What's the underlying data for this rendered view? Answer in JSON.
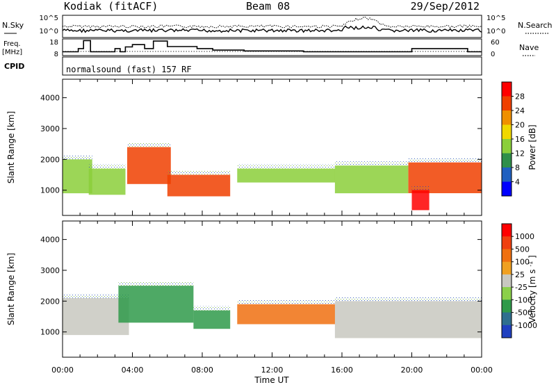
{
  "header": {
    "station": "Kodiak (fitACF)",
    "beam": "Beam 08",
    "date": "29/Sep/2012"
  },
  "mode_text": "normalsound (fast) 157 RF",
  "chart_data": [
    {
      "type": "line",
      "left_label": "N.Sky",
      "right_label": "N.Search",
      "left_ticks": [
        "10^5",
        "10^0"
      ],
      "right_ticks": [
        "10^5",
        "10^0"
      ],
      "x_range_hours": [
        0,
        24
      ]
    },
    {
      "type": "line",
      "left_label": "Freq.",
      "left_unit": "[MHz]",
      "right_label": "Nave",
      "left_ticks": [
        "18",
        "8"
      ],
      "right_ticks": [
        "60",
        "0"
      ],
      "freq_steps": [
        {
          "t": 0.0,
          "f": 10.3
        },
        {
          "t": 0.7,
          "f": 10.3
        },
        {
          "t": 0.9,
          "f": 12.2
        },
        {
          "t": 1.2,
          "f": 17.0
        },
        {
          "t": 1.6,
          "f": 10.3
        },
        {
          "t": 3.0,
          "f": 12.2
        },
        {
          "t": 3.3,
          "f": 10.3
        },
        {
          "t": 3.6,
          "f": 13.2
        },
        {
          "t": 4.0,
          "f": 14.6
        },
        {
          "t": 4.7,
          "f": 12.2
        },
        {
          "t": 5.2,
          "f": 16.7
        },
        {
          "t": 6.0,
          "f": 13.4
        },
        {
          "t": 7.7,
          "f": 12.2
        },
        {
          "t": 8.1,
          "f": 12.2
        },
        {
          "t": 8.6,
          "f": 11.3
        },
        {
          "t": 10.4,
          "f": 10.8
        },
        {
          "t": 13.8,
          "f": 10.3
        },
        {
          "t": 19.7,
          "f": 10.3
        },
        {
          "t": 20.0,
          "f": 12.2
        },
        {
          "t": 23.2,
          "f": 10.3
        },
        {
          "t": 24.0,
          "f": 10.3
        }
      ]
    },
    {
      "type": "line",
      "left_label": "CPID"
    },
    {
      "type": "heatmap",
      "quantity": "Power",
      "ylabel": "Slant Range [km]",
      "y_ticks": [
        1000,
        2000,
        3000,
        4000
      ],
      "ylim": [
        180,
        4600
      ],
      "x_ticks": [
        "00:00",
        "04:00",
        "08:00",
        "12:00",
        "16:00",
        "20:00",
        "00:00"
      ],
      "colorbar_label": "Power",
      "colorbar_unit": "[dB]",
      "colorbar_ticks": [
        "4",
        "8",
        "12",
        "16",
        "20",
        "24",
        "28"
      ],
      "colorbar_colors": [
        "#0000ff",
        "#2060c0",
        "#2f8f4a",
        "#8bcf3a",
        "#f0d800",
        "#f09000",
        "#f04000",
        "#ff0000"
      ],
      "regions": [
        {
          "t0": 0.0,
          "t1": 1.7,
          "r0": 900,
          "r1": 2000
        },
        {
          "t0": 1.5,
          "t1": 3.6,
          "r0": 850,
          "r1": 1700
        },
        {
          "t0": 3.7,
          "t1": 6.2,
          "r0": 1200,
          "r1": 2400
        },
        {
          "t0": 6.0,
          "t1": 9.6,
          "r0": 800,
          "r1": 1500
        },
        {
          "t0": 10.0,
          "t1": 15.6,
          "r0": 1250,
          "r1": 1700
        },
        {
          "t0": 15.6,
          "t1": 19.8,
          "r0": 900,
          "r1": 1800
        },
        {
          "t0": 19.8,
          "t1": 24.0,
          "r0": 900,
          "r1": 1900
        },
        {
          "t0": 20.0,
          "t1": 21.0,
          "r0": 350,
          "r1": 1000
        }
      ]
    },
    {
      "type": "heatmap",
      "quantity": "Velocity",
      "ylabel": "Slant Range [km]",
      "y_ticks": [
        1000,
        2000,
        3000,
        4000
      ],
      "ylim": [
        180,
        4600
      ],
      "x_ticks": [
        "00:00",
        "04:00",
        "08:00",
        "12:00",
        "16:00",
        "20:00",
        "00:00"
      ],
      "xlabel": "Time UT",
      "colorbar_label": "Velocity",
      "colorbar_unit": "[m s",
      "colorbar_unit_sup": "-1",
      "colorbar_unit_close": "]",
      "colorbar_ticks": [
        "1000",
        "500",
        "100",
        "25",
        "-25",
        "-100",
        "-500",
        "-1000"
      ],
      "colorbar_colors": [
        "#2040c0",
        "#2f6f8f",
        "#2f9a4a",
        "#8bd04a",
        "#c8c8c0",
        "#f0a020",
        "#f07010",
        "#f04010",
        "#ff0000"
      ],
      "regions": [
        {
          "t0": 0.0,
          "t1": 3.8,
          "r0": 900,
          "r1": 2100
        },
        {
          "t0": 3.2,
          "t1": 7.5,
          "r0": 1300,
          "r1": 2500
        },
        {
          "t0": 7.5,
          "t1": 9.6,
          "r0": 1100,
          "r1": 1700
        },
        {
          "t0": 10.0,
          "t1": 15.6,
          "r0": 1250,
          "r1": 1900
        },
        {
          "t0": 15.6,
          "t1": 24.0,
          "r0": 800,
          "r1": 2000
        }
      ]
    }
  ]
}
